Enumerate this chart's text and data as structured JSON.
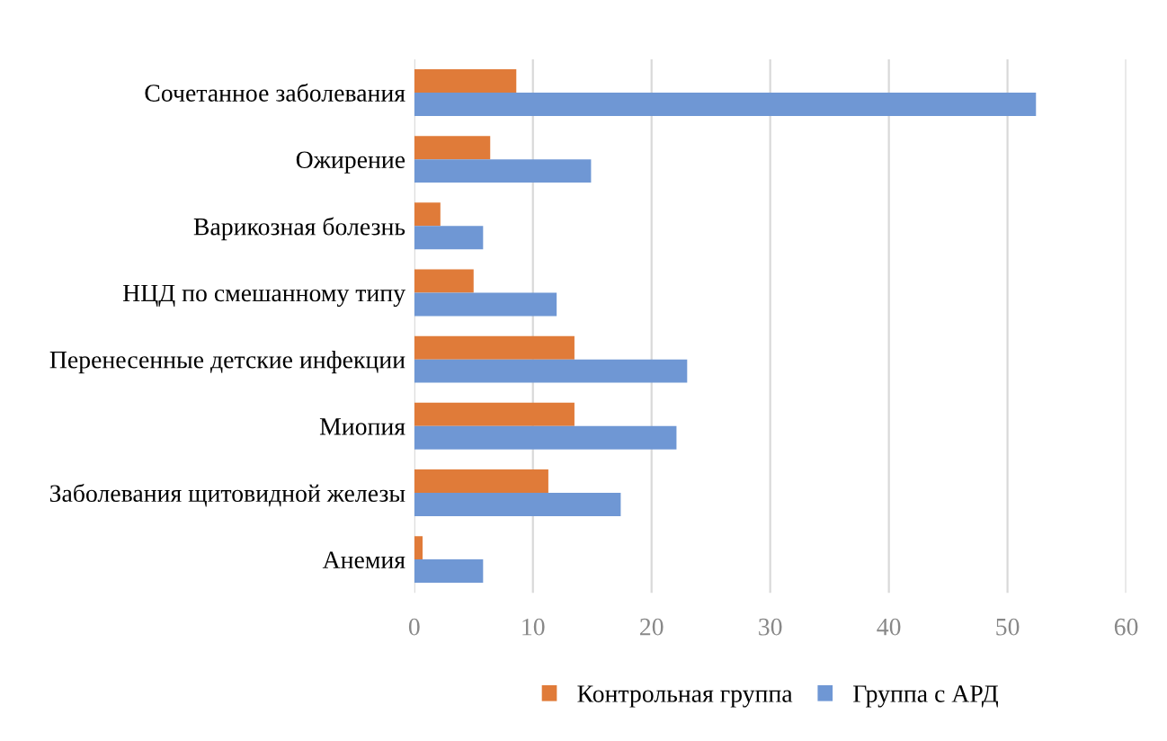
{
  "chart_data": {
    "type": "bar",
    "orientation": "horizontal",
    "categories": [
      "Сочетанное заболевания",
      "Ожирение",
      "Варикозная болезнь",
      "НЦД по смешанному типу",
      "Перенесенные детские инфекции",
      "Миопия",
      "Заболевания щитовидной железы",
      "Анемия"
    ],
    "series": [
      {
        "name": "Контрольная группа",
        "color": "#e07b39",
        "values": [
          8.6,
          6.4,
          2.2,
          5.0,
          13.5,
          13.5,
          11.3,
          0.7
        ]
      },
      {
        "name": "Группа с АРД",
        "color": "#6f97d4",
        "values": [
          52.4,
          14.9,
          5.8,
          12.0,
          23.0,
          22.1,
          17.4,
          5.8
        ]
      }
    ],
    "xlim": [
      0,
      60
    ],
    "xticks": [
      0,
      10,
      20,
      30,
      40,
      50,
      60
    ],
    "grid": "x",
    "legend": "bottom"
  }
}
